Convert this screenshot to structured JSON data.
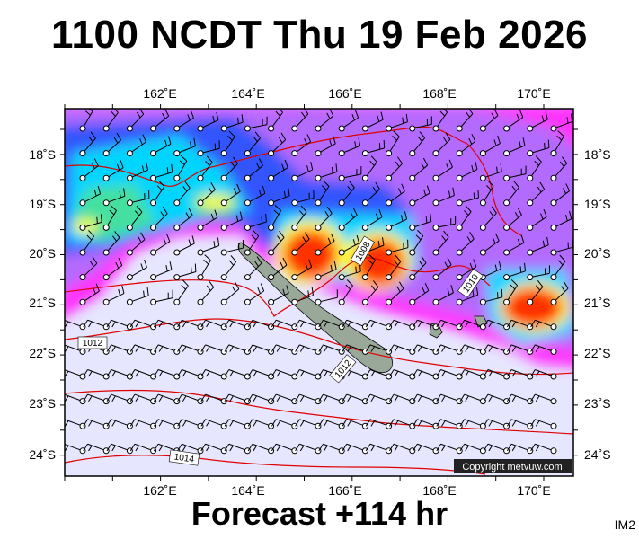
{
  "title": "1100 NCDT Thu 19 Feb 2026",
  "footer": "Forecast +114 hr",
  "corner_label": "IM2",
  "copyright": "Copyright metvuw.com",
  "axes": {
    "longitudes": [
      "162˚E",
      "164˚E",
      "166˚E",
      "168˚E",
      "170˚E"
    ],
    "latitudes": [
      "18˚S",
      "19˚S",
      "20˚S",
      "21˚S",
      "22˚S",
      "23˚S",
      "24˚S"
    ]
  },
  "isobar_labels": [
    "1008",
    "1010",
    "1012",
    "1012",
    "1014"
  ],
  "colors": {
    "background": "#e6e6ff",
    "land": "#9aa89a",
    "isobar": "#e00000",
    "rain_magenta": "#ff33ff",
    "rain_purple": "#b36bff",
    "rain_blue": "#3355ff",
    "rain_cyan": "#00d5ff",
    "rain_green": "#44e0a0",
    "rain_yellow": "#ffff33",
    "rain_red": "#ff3300"
  }
}
